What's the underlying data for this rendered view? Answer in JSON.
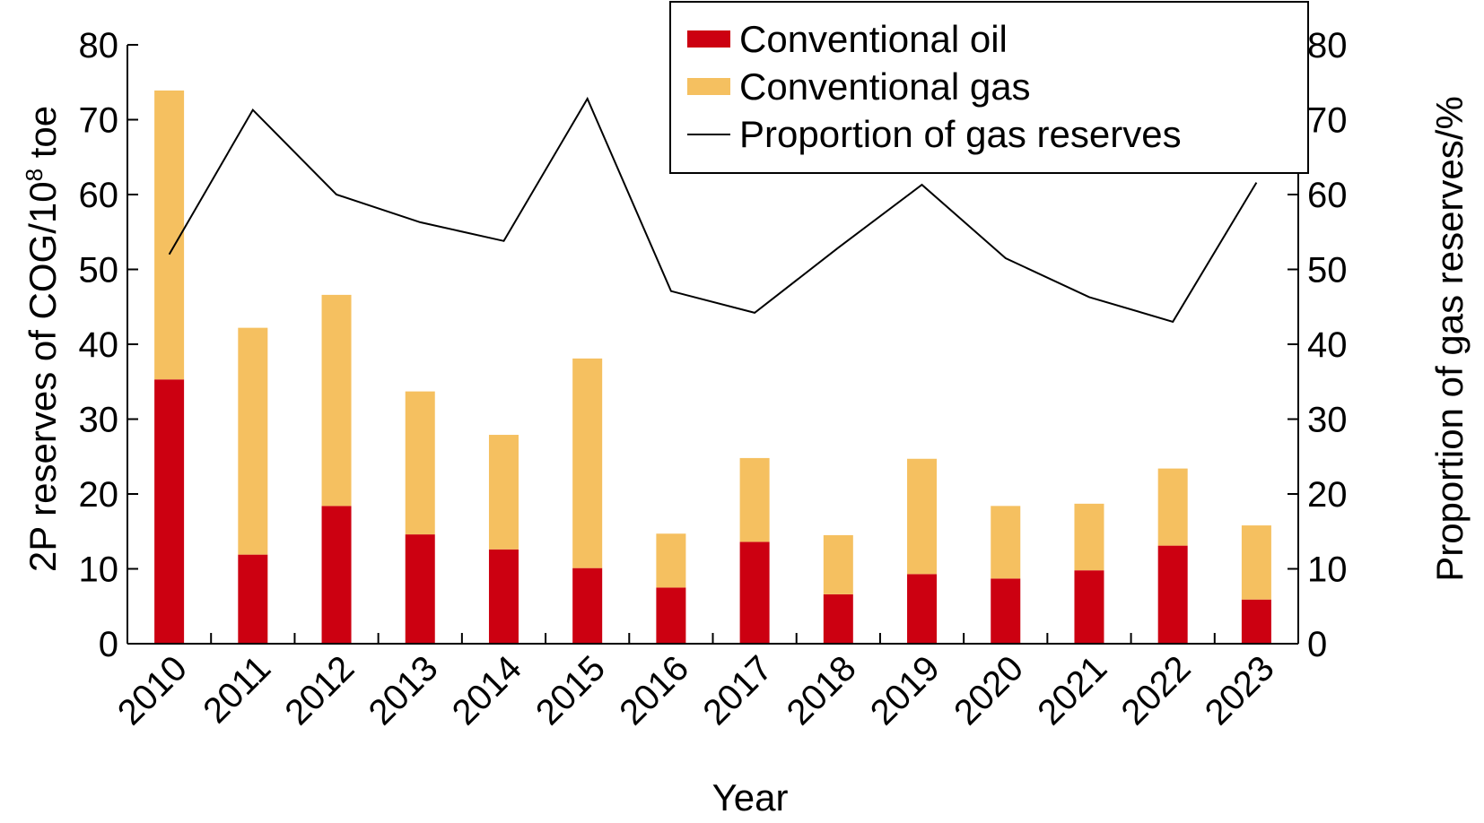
{
  "chart_data": {
    "type": "bar",
    "stacked": true,
    "categories": [
      "2010",
      "2011",
      "2012",
      "2013",
      "2014",
      "2015",
      "2016",
      "2017",
      "2018",
      "2019",
      "2020",
      "2021",
      "2022",
      "2023"
    ],
    "series": [
      {
        "name": "Conventional oil",
        "axis": "left",
        "color": "#cc0011",
        "values": [
          35.3,
          11.9,
          18.4,
          14.6,
          12.6,
          10.1,
          7.5,
          13.6,
          6.6,
          9.3,
          8.7,
          9.8,
          13.1,
          5.9
        ]
      },
      {
        "name": "Conventional gas",
        "axis": "left",
        "color": "#f5c060",
        "values": [
          38.6,
          30.3,
          28.2,
          19.1,
          15.3,
          28.0,
          7.2,
          11.2,
          7.9,
          15.4,
          9.7,
          8.9,
          10.3,
          9.9
        ]
      },
      {
        "name": "Proportion of gas reserves",
        "axis": "right",
        "type": "line",
        "color": "#000000",
        "values": [
          52.0,
          71.3,
          60.0,
          56.3,
          53.8,
          72.8,
          47.1,
          44.2,
          52.9,
          61.3,
          51.5,
          46.3,
          43.0,
          61.6
        ]
      }
    ],
    "xlabel": "Year",
    "ylabel_left": "2P reserves of COG/10",
    "ylabel_left_exp": "8",
    "ylabel_left_unit": " toe",
    "ylabel_right": "Proportion of gas reserves/%",
    "ylim_left": [
      0,
      80
    ],
    "ylim_right": [
      0,
      80
    ],
    "yticks": [
      0,
      10,
      20,
      30,
      40,
      50,
      60,
      70,
      80
    ],
    "grid": false,
    "legend_position": "top-right"
  }
}
